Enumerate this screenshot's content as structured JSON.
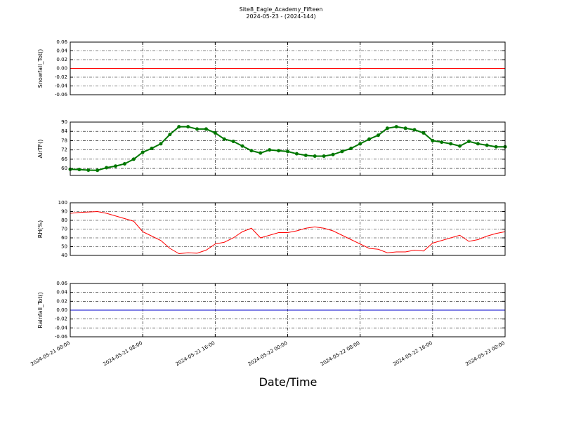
{
  "figure": {
    "title": "Site8_Eagle_Academy_Fifteen",
    "subtitle": "2024-05-23 - (2024-144)",
    "xlabel": "Date/Time",
    "xlim": [
      "2024-05-21 00:00",
      "2024-05-23 00:00"
    ],
    "xticks": [
      "2024-05-21 00:00",
      "2024-05-21 08:00",
      "2024-05-21 16:00",
      "2024-05-22 00:00",
      "2024-05-22 08:00",
      "2024-05-22 16:00",
      "2024-05-23 00:00"
    ]
  },
  "chart_data": [
    {
      "type": "line",
      "ylabel": "Snowfall_Tot()",
      "ylim": [
        -0.06,
        0.06
      ],
      "yticks": [
        -0.06,
        -0.04,
        -0.02,
        {
          "value": 0,
          "label": "0.00"
        },
        0.02,
        0.04,
        0.06
      ],
      "grid": true,
      "x": [
        "2024-05-21 00:00",
        "2024-05-23 00:00"
      ],
      "values": [
        0,
        0
      ],
      "color": "#ff0000",
      "marker": false
    },
    {
      "type": "line",
      "ylabel": "AirTF()",
      "ylim": [
        55.5,
        90
      ],
      "yticks": [
        60,
        66,
        72,
        78,
        84,
        90
      ],
      "grid": true,
      "x": [
        "2024-05-21 00:00",
        "2024-05-21 01:00",
        "2024-05-21 02:00",
        "2024-05-21 03:00",
        "2024-05-21 04:00",
        "2024-05-21 05:00",
        "2024-05-21 06:00",
        "2024-05-21 07:00",
        "2024-05-21 08:00",
        "2024-05-21 09:00",
        "2024-05-21 10:00",
        "2024-05-21 11:00",
        "2024-05-21 12:00",
        "2024-05-21 13:00",
        "2024-05-21 14:00",
        "2024-05-21 15:00",
        "2024-05-21 16:00",
        "2024-05-21 17:00",
        "2024-05-21 18:00",
        "2024-05-21 19:00",
        "2024-05-21 20:00",
        "2024-05-21 21:00",
        "2024-05-21 22:00",
        "2024-05-21 23:00",
        "2024-05-22 00:00",
        "2024-05-22 01:00",
        "2024-05-22 02:00",
        "2024-05-22 03:00",
        "2024-05-22 04:00",
        "2024-05-22 05:00",
        "2024-05-22 06:00",
        "2024-05-22 07:00",
        "2024-05-22 08:00",
        "2024-05-22 09:00",
        "2024-05-22 10:00",
        "2024-05-22 11:00",
        "2024-05-22 12:00",
        "2024-05-22 13:00",
        "2024-05-22 14:00",
        "2024-05-22 15:00",
        "2024-05-22 16:00",
        "2024-05-22 17:00",
        "2024-05-22 18:00",
        "2024-05-22 19:00",
        "2024-05-22 20:00",
        "2024-05-22 21:00",
        "2024-05-22 22:00",
        "2024-05-22 23:00",
        "2024-05-23 00:00"
      ],
      "values": [
        59.5,
        59.3,
        58.9,
        58.8,
        60.5,
        61.5,
        63,
        66,
        70.5,
        73,
        76,
        82,
        87,
        87,
        85.5,
        85.5,
        83,
        79,
        77.5,
        74.5,
        71.5,
        70,
        72,
        71.5,
        71,
        69.5,
        68.5,
        68,
        68,
        69,
        71,
        73,
        76,
        79,
        81.5,
        86,
        87,
        86,
        85,
        83,
        78,
        77,
        76,
        74.5,
        77.5,
        76,
        75,
        74,
        74
      ],
      "color": "#007700",
      "marker": true
    },
    {
      "type": "line",
      "ylabel": "RH(%)",
      "ylim": [
        40,
        100
      ],
      "yticks": [
        40,
        50,
        60,
        70,
        80,
        90,
        100
      ],
      "grid": true,
      "x": [
        "2024-05-21 00:00",
        "2024-05-21 01:00",
        "2024-05-21 02:00",
        "2024-05-21 03:00",
        "2024-05-21 04:00",
        "2024-05-21 05:00",
        "2024-05-21 06:00",
        "2024-05-21 07:00",
        "2024-05-21 08:00",
        "2024-05-21 09:00",
        "2024-05-21 10:00",
        "2024-05-21 11:00",
        "2024-05-21 12:00",
        "2024-05-21 13:00",
        "2024-05-21 14:00",
        "2024-05-21 15:00",
        "2024-05-21 16:00",
        "2024-05-21 17:00",
        "2024-05-21 18:00",
        "2024-05-21 19:00",
        "2024-05-21 20:00",
        "2024-05-21 21:00",
        "2024-05-21 22:00",
        "2024-05-21 23:00",
        "2024-05-22 00:00",
        "2024-05-22 01:00",
        "2024-05-22 02:00",
        "2024-05-22 03:00",
        "2024-05-22 04:00",
        "2024-05-22 05:00",
        "2024-05-22 06:00",
        "2024-05-22 07:00",
        "2024-05-22 08:00",
        "2024-05-22 09:00",
        "2024-05-22 10:00",
        "2024-05-22 11:00",
        "2024-05-22 12:00",
        "2024-05-22 13:00",
        "2024-05-22 14:00",
        "2024-05-22 15:00",
        "2024-05-22 16:00",
        "2024-05-22 17:00",
        "2024-05-22 18:00",
        "2024-05-22 19:00",
        "2024-05-22 20:00",
        "2024-05-22 21:00",
        "2024-05-22 22:00",
        "2024-05-22 23:00",
        "2024-05-23 00:00"
      ],
      "values": [
        88,
        89,
        89.5,
        90,
        88,
        85,
        82,
        79,
        67,
        62,
        57,
        48,
        42,
        43,
        42.5,
        46,
        53,
        55,
        60,
        67,
        71,
        60,
        63,
        66,
        66,
        68,
        71,
        72.5,
        71,
        68,
        63,
        58,
        53,
        48,
        47,
        43,
        44,
        44,
        46,
        45,
        54,
        57,
        60,
        63,
        56,
        58,
        62,
        65,
        67
      ],
      "color": "#ff0000",
      "marker": false
    },
    {
      "type": "line",
      "ylabel": "Rainfall_Tot()",
      "ylim": [
        -0.06,
        0.06
      ],
      "yticks": [
        -0.06,
        -0.04,
        -0.02,
        {
          "value": 0,
          "label": "0.00"
        },
        0.02,
        0.04,
        0.06
      ],
      "grid": true,
      "x": [
        "2024-05-21 00:00",
        "2024-05-23 00:00"
      ],
      "values": [
        0,
        0
      ],
      "color": "#0000cc",
      "marker": false
    }
  ]
}
